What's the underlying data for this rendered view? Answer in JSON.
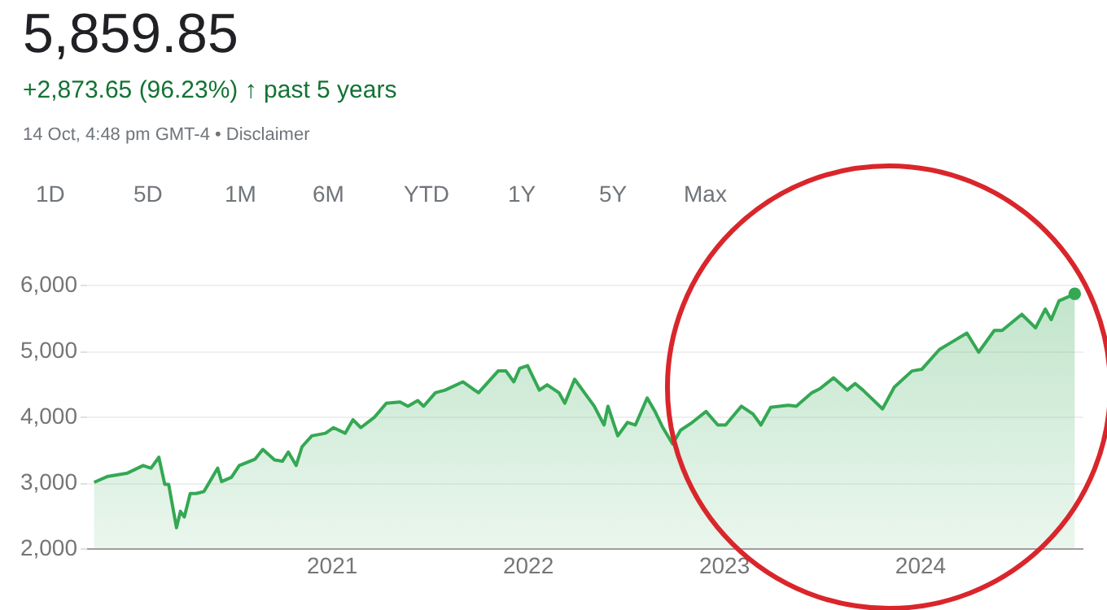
{
  "chart_data": {
    "type": "area",
    "title": "5,859.85",
    "subtitle": "+2,873.65 (96.23%) ↑ past 5 years",
    "annotations": [
      "14 Oct, 4:48 pm GMT-4 • Disclaimer",
      "1D",
      "5D",
      "1M",
      "6M",
      "YTD",
      "1Y",
      "5Y",
      "Max"
    ],
    "x": [
      2019.79,
      2019.86,
      2019.96,
      2020.04,
      2020.08,
      2020.12,
      2020.15,
      2020.17,
      2020.21,
      2020.23,
      2020.25,
      2020.28,
      2020.31,
      2020.35,
      2020.42,
      2020.44,
      2020.49,
      2020.53,
      2020.61,
      2020.65,
      2020.71,
      2020.75,
      2020.78,
      2020.82,
      2020.85,
      2020.9,
      2020.97,
      2021.01,
      2021.07,
      2021.11,
      2021.15,
      2021.22,
      2021.28,
      2021.35,
      2021.39,
      2021.44,
      2021.47,
      2021.53,
      2021.58,
      2021.67,
      2021.72,
      2021.75,
      2021.85,
      2021.89,
      2021.93,
      2021.96,
      2022.0,
      2022.06,
      2022.1,
      2022.16,
      2022.19,
      2022.24,
      2022.3,
      2022.34,
      2022.39,
      2022.41,
      2022.46,
      2022.51,
      2022.55,
      2022.61,
      2022.65,
      2022.69,
      2022.74,
      2022.78,
      2022.84,
      2022.91,
      2022.97,
      2023.01,
      2023.09,
      2023.15,
      2023.19,
      2023.24,
      2023.33,
      2023.37,
      2023.45,
      2023.49,
      2023.56,
      2023.63,
      2023.67,
      2023.71,
      2023.81,
      2023.87,
      2023.96,
      2024.01,
      2024.1,
      2024.17,
      2024.24,
      2024.3,
      2024.38,
      2024.42,
      2024.52,
      2024.59,
      2024.64,
      2024.67,
      2024.71,
      2024.79
    ],
    "series": [
      {
        "color": "#34a853",
        "values": [
          3000,
          3090,
          3140,
          3255,
          3215,
          3380,
          2970,
          2970,
          2310,
          2560,
          2475,
          2830,
          2830,
          2860,
          3215,
          3010,
          3075,
          3255,
          3350,
          3500,
          3340,
          3320,
          3460,
          3255,
          3540,
          3705,
          3745,
          3830,
          3745,
          3950,
          3830,
          3990,
          4200,
          4220,
          4155,
          4240,
          4155,
          4360,
          4400,
          4525,
          4420,
          4360,
          4690,
          4690,
          4525,
          4730,
          4770,
          4400,
          4480,
          4360,
          4200,
          4565,
          4320,
          4155,
          3870,
          4155,
          3705,
          3910,
          3870,
          4280,
          4075,
          3830,
          3580,
          3790,
          3910,
          4075,
          3870,
          3870,
          4155,
          4035,
          3870,
          4140,
          4170,
          4155,
          4360,
          4420,
          4585,
          4400,
          4500,
          4400,
          4115,
          4445,
          4690,
          4715,
          5015,
          5140,
          5265,
          4975,
          5305,
          5305,
          5550,
          5345,
          5630,
          5470,
          5755,
          5860
        ]
      },
      {
        "type": "scatter",
        "color": "#34a853",
        "x": [
          2024.79
        ],
        "values": [
          5860
        ]
      }
    ],
    "xlim": [
      2019.75,
      2024.83
    ],
    "xticks": [
      2021,
      2022,
      2023,
      2024
    ],
    "ylim": [
      2000,
      6000
    ],
    "yticks": [
      {
        "value": 2000,
        "label": "2,000"
      },
      {
        "value": 3000,
        "label": "3,000"
      },
      {
        "value": 4000,
        "label": "4,000"
      },
      {
        "value": 5000,
        "label": "5,000"
      },
      {
        "value": 6000,
        "label": "6,000"
      }
    ],
    "grid": "y"
  }
}
